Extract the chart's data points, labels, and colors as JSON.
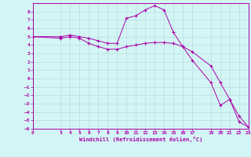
{
  "xlabel": "Windchill (Refroidissement éolien,°C)",
  "background_color": "#d4f5f5",
  "grid_color": "#b8dede",
  "line_color": "#aa00aa",
  "xlim": [
    0,
    23
  ],
  "ylim": [
    -6,
    9
  ],
  "x_ticks": [
    0,
    3,
    4,
    5,
    6,
    7,
    8,
    9,
    10,
    11,
    12,
    13,
    14,
    15,
    16,
    17,
    19,
    20,
    21,
    22,
    23
  ],
  "y_ticks": [
    8,
    7,
    6,
    5,
    4,
    3,
    2,
    1,
    0,
    -1,
    -2,
    -3,
    -4,
    -5,
    -6
  ],
  "series1_x": [
    0,
    3,
    4,
    5,
    6,
    7,
    8,
    9,
    10,
    11,
    12,
    13,
    14,
    15,
    16,
    17,
    19,
    20,
    21,
    22,
    23
  ],
  "series1_y": [
    5.0,
    5.0,
    5.2,
    5.0,
    4.8,
    4.5,
    4.2,
    4.2,
    7.2,
    7.5,
    8.2,
    8.7,
    8.2,
    5.5,
    3.8,
    2.2,
    -0.5,
    -3.2,
    -2.5,
    -5.2,
    -5.8
  ],
  "series2_x": [
    0,
    3,
    4,
    5,
    6,
    7,
    8,
    9,
    10,
    11,
    12,
    13,
    14,
    15,
    16,
    17,
    19,
    20,
    21,
    22,
    23
  ],
  "series2_y": [
    5.0,
    4.8,
    5.0,
    4.8,
    4.2,
    3.8,
    3.5,
    3.5,
    3.8,
    4.0,
    4.2,
    4.3,
    4.3,
    4.2,
    3.8,
    3.2,
    1.5,
    -0.5,
    -2.5,
    -4.5,
    -5.8
  ]
}
